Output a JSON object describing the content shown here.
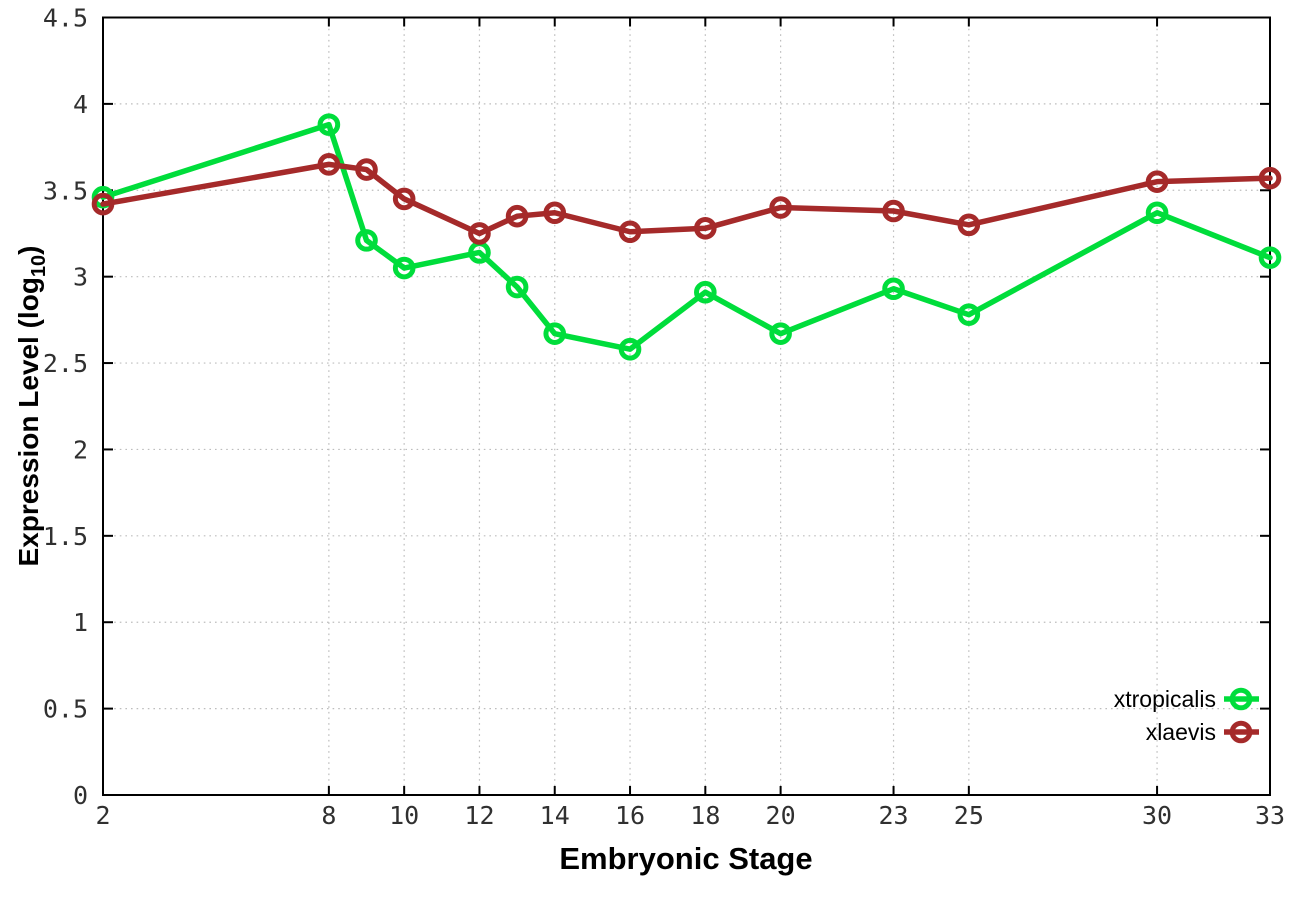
{
  "chart_data": {
    "type": "line",
    "title": "",
    "xlabel": "Embryonic Stage",
    "ylabel": "Expression Level (log10)",
    "ylabel_parts": {
      "main": "Expression Level (log",
      "sub": "10",
      "end": ")"
    },
    "x": [
      2,
      8,
      9,
      10,
      12,
      13,
      14,
      16,
      18,
      20,
      23,
      25,
      30,
      33
    ],
    "series": [
      {
        "name": "xtropicalis",
        "color": "#00dd3b",
        "values": [
          3.46,
          3.88,
          3.21,
          3.05,
          3.14,
          2.94,
          2.67,
          2.58,
          2.91,
          2.67,
          2.93,
          2.78,
          3.37,
          3.11
        ]
      },
      {
        "name": "xlaevis",
        "color": "#a52a2a",
        "values": [
          3.42,
          3.65,
          3.62,
          3.45,
          3.25,
          3.35,
          3.37,
          3.26,
          3.28,
          3.4,
          3.38,
          3.3,
          3.55,
          3.57
        ]
      }
    ],
    "xtick_values": [
      2,
      8,
      10,
      12,
      14,
      16,
      18,
      20,
      23,
      25,
      30,
      33
    ],
    "xtick_labels": [
      "2",
      "8",
      "10",
      "12",
      "14",
      "16",
      "18",
      "20",
      "23",
      "25",
      "30",
      "33"
    ],
    "ytick_values": [
      0,
      0.5,
      1,
      1.5,
      2,
      2.5,
      3,
      3.5,
      4,
      4.5
    ],
    "ytick_labels": [
      "0",
      "0.5",
      "1",
      "1.5",
      "2",
      "2.5",
      "3",
      "3.5",
      "4",
      "4.5"
    ],
    "xlim": [
      2,
      33
    ],
    "ylim": [
      0,
      4.5
    ],
    "grid": true,
    "legend_position": "inside-bottom-right"
  },
  "colors": {
    "background": "#ffffff",
    "axis_border": "#000000",
    "gridline": "#bdbdbd",
    "tick_text": "#303030"
  }
}
